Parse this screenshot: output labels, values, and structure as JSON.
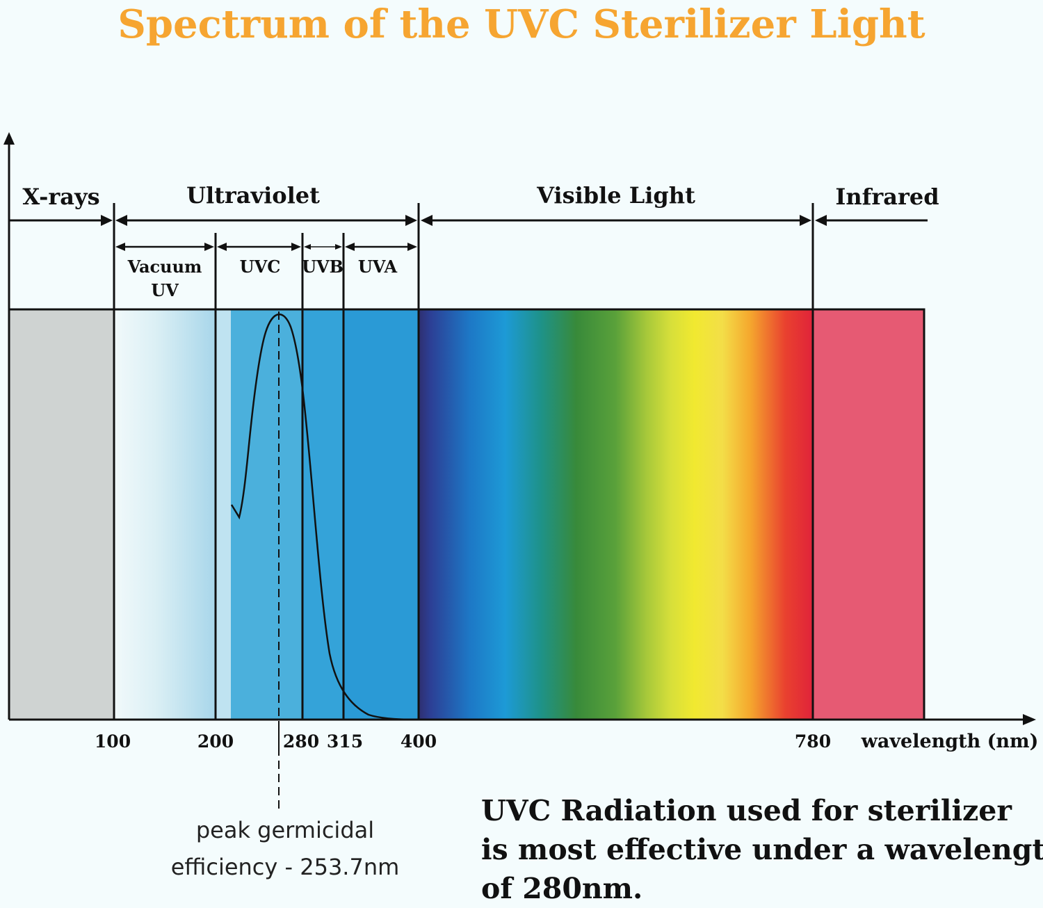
{
  "title": "Spectrum of the UVC Sterilizer Light",
  "regions": {
    "xrays": "X-rays",
    "ultraviolet": "Ultraviolet",
    "visible": "Visible Light",
    "infrared": "Infrared"
  },
  "subregions": {
    "vacuum_line1": "Vacuum",
    "vacuum_line2": "UV",
    "uvc": "UVC",
    "uvb": "UVB",
    "uva": "UVA"
  },
  "ticks": [
    "100",
    "200",
    "280",
    "315",
    "400",
    "780"
  ],
  "axis_label": "wavelength (nm)",
  "peak_line1": "peak germicidal",
  "peak_line2": "efficiency - 253.7nm",
  "statement": [
    "UVC Radiation used for sterilizer",
    "is most effective under a wavelength",
    "of 280nm."
  ],
  "colors": {
    "title": "#f6a531",
    "xrays": "#cfd3d2",
    "infrared": "#e65a73",
    "uv_blue": "#2a9ad6"
  }
}
